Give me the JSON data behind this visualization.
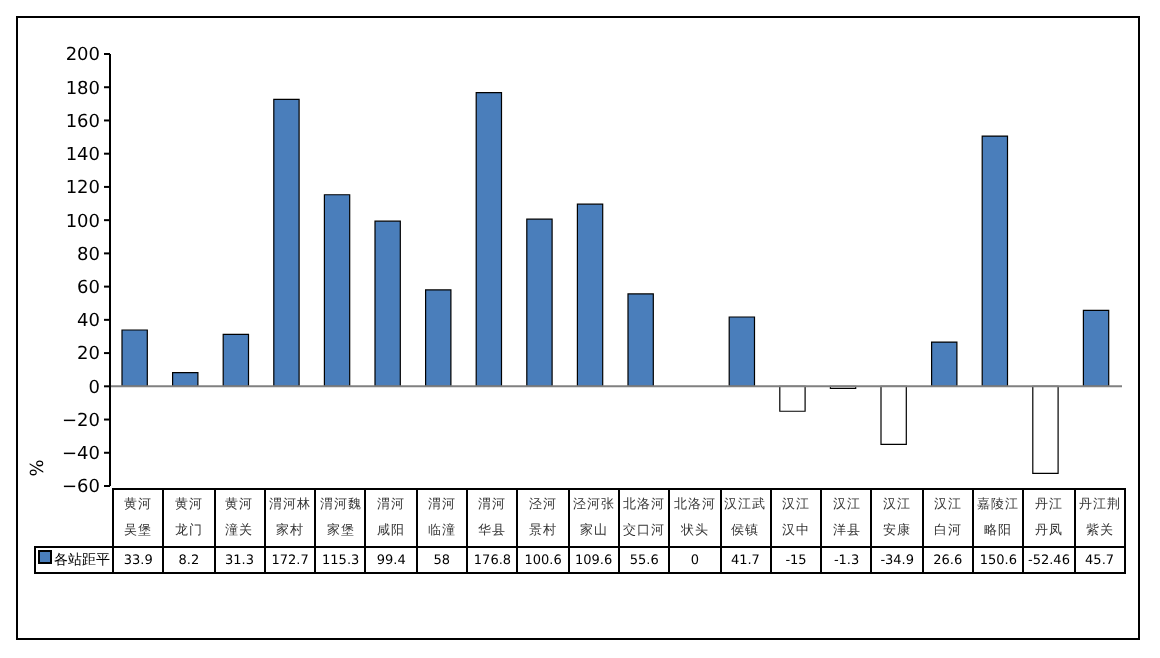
{
  "chart_data": {
    "type": "bar",
    "ylabel": "%",
    "categories": [
      "黄河吴堡",
      "黄河龙门",
      "黄河潼关",
      "渭河林家村",
      "渭河魏家堡",
      "渭河咸阳",
      "渭河临潼",
      "渭河华县",
      "泾河景村",
      "泾河张家山",
      "北洛河交口河",
      "北洛河状头",
      "汉江武侯镇",
      "汉江汉中",
      "汉江洋县",
      "汉江安康",
      "汉江白河",
      "嘉陵江略阳",
      "丹江丹凤",
      "丹江荆紫关"
    ],
    "series": [
      {
        "name": "各站距平",
        "color": "#4a7ebb",
        "values": [
          33.9,
          8.2,
          31.3,
          172.7,
          115.3,
          99.4,
          58,
          176.8,
          100.6,
          109.6,
          55.6,
          0,
          41.7,
          -15,
          -1.3,
          -34.9,
          26.6,
          150.6,
          -52.46,
          45.7
        ],
        "colors": [
          "#4a7ebb",
          "#4a7ebb",
          "#4a7ebb",
          "#4a7ebb",
          "#4a7ebb",
          "#4a7ebb",
          "#4a7ebb",
          "#4a7ebb",
          "#4a7ebb",
          "#4a7ebb",
          "#4a7ebb",
          "#4a7ebb",
          "#4a7ebb",
          "#ffffff",
          "#ffffff",
          "#ffffff",
          "#4a7ebb",
          "#4a7ebb",
          "#ffffff",
          "#4a7ebb"
        ]
      }
    ],
    "ylim": [
      -60,
      200
    ],
    "yticks": [
      -60,
      -40,
      -20,
      0,
      20,
      40,
      60,
      80,
      100,
      120,
      140,
      160,
      180,
      200
    ],
    "data_labels": true,
    "legend": "bottom"
  }
}
